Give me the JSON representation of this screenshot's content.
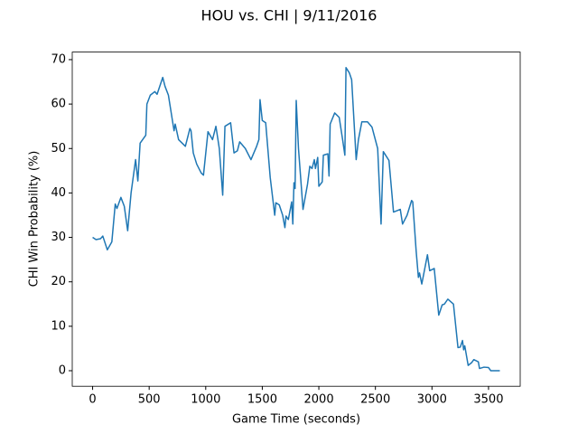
{
  "chart_data": {
    "type": "line",
    "title": "HOU vs. CHI | 9/11/2016",
    "x_label": "Game Time (seconds)",
    "y_label": "CHI Win Probability (%)",
    "x": [
      0,
      30,
      70,
      90,
      130,
      170,
      200,
      215,
      250,
      280,
      310,
      340,
      380,
      400,
      420,
      470,
      480,
      510,
      550,
      570,
      620,
      640,
      670,
      720,
      730,
      760,
      820,
      860,
      870,
      890,
      920,
      960,
      980,
      1020,
      1060,
      1090,
      1120,
      1150,
      1170,
      1220,
      1250,
      1280,
      1300,
      1350,
      1400,
      1450,
      1470,
      1480,
      1500,
      1530,
      1570,
      1610,
      1620,
      1650,
      1680,
      1700,
      1710,
      1730,
      1760,
      1770,
      1780,
      1790,
      1800,
      1820,
      1860,
      1900,
      1920,
      1940,
      1960,
      1970,
      1990,
      2000,
      2030,
      2040,
      2080,
      2090,
      2100,
      2140,
      2180,
      2210,
      2230,
      2240,
      2270,
      2290,
      2330,
      2350,
      2380,
      2430,
      2470,
      2520,
      2550,
      2570,
      2620,
      2660,
      2720,
      2740,
      2780,
      2820,
      2830,
      2860,
      2880,
      2890,
      2910,
      2960,
      2980,
      3020,
      3060,
      3090,
      3110,
      3140,
      3190,
      3230,
      3250,
      3270,
      3280,
      3290,
      3320,
      3350,
      3370,
      3410,
      3420,
      3460,
      3500,
      3520,
      3600
    ],
    "series": [
      {
        "name": "CHI",
        "color": "#1f77b4",
        "values": [
          30,
          29.5,
          29.7,
          30.3,
          27.2,
          29,
          37.5,
          36.5,
          39,
          37,
          31.5,
          40,
          47.5,
          42.7,
          51.2,
          53,
          60,
          62,
          62.8,
          62.2,
          66,
          64,
          62,
          54,
          55.5,
          52,
          50.5,
          54.5,
          54,
          49,
          46.5,
          44.5,
          44,
          53.8,
          52,
          55,
          50,
          39.5,
          55,
          55.8,
          49,
          49.5,
          51.5,
          50,
          47.5,
          50.5,
          52,
          61,
          56.3,
          55.8,
          43.5,
          35,
          37.8,
          37.3,
          35,
          32.2,
          34.8,
          34,
          38,
          33,
          42.3,
          41,
          60.8,
          50,
          36.3,
          42,
          46,
          45.5,
          47.5,
          45.5,
          48,
          41.5,
          42.5,
          48.5,
          48.8,
          43.8,
          55.5,
          58,
          57,
          52,
          48.5,
          68.2,
          67,
          65.5,
          47.5,
          52,
          56,
          56,
          54.8,
          50,
          33,
          49.3,
          47.3,
          35.7,
          36.3,
          33,
          35,
          38.3,
          38,
          27,
          21,
          22,
          19.5,
          26.1,
          22.5,
          23,
          12.5,
          14.8,
          15,
          16.1,
          15,
          5.2,
          5.3,
          6.8,
          4.7,
          5.6,
          1.2,
          1.8,
          2.5,
          2,
          0.5,
          0.8,
          0.7,
          0,
          0
        ]
      }
    ],
    "xlim": [
      -180,
      3780
    ],
    "ylim": [
      -3.5,
      71.7
    ],
    "xticks": [
      0,
      500,
      1000,
      1500,
      2000,
      2500,
      3000,
      3500
    ],
    "yticks": [
      0,
      10,
      20,
      30,
      40,
      50,
      60,
      70
    ]
  }
}
